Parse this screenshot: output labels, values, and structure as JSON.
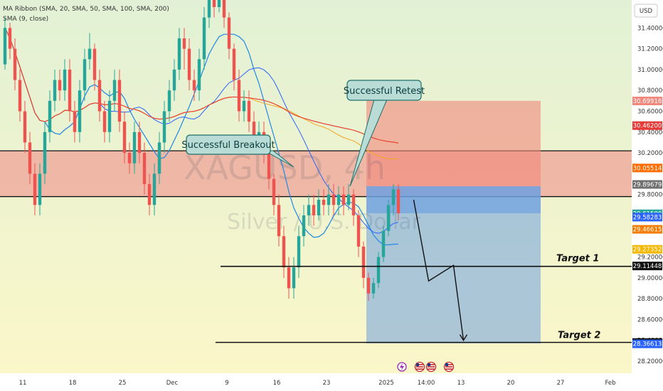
{
  "indicators": {
    "ribbon": "MA Ribbon (SMA, 20, SMA, 50, SMA, 100, SMA, 200)",
    "sma": "SMA (9, close)"
  },
  "currency": "USD",
  "watermark": {
    "symbol": "XAGUSD, 4h",
    "name": "Silver / U.S. Dollar"
  },
  "annotations": {
    "breakout": "Successful Breakout",
    "retest": "Successful Retest",
    "target1": "Target 1",
    "target2": "Target 2"
  },
  "colors": {
    "background_top": "#e4f2d2",
    "background_bottom": "#fbf6c9",
    "zone": "#f0908a",
    "stop_zone": "#f0877c",
    "profit_zone": "#6d9fe0",
    "up_candle": "#26a69a",
    "down_candle": "#ef5350",
    "ma20": "#2962ff",
    "ma50": "#f5a623",
    "ma100": "#ff6d00",
    "ma200": "#e53935",
    "sma9": "#1e88e5"
  },
  "chart_data": {
    "type": "candlestick",
    "symbol": "XAGUSD",
    "timeframe": "4h",
    "y_axis": {
      "min": 28.2,
      "max": 31.6,
      "ticks": [
        "31.40000",
        "31.20000",
        "31.00000",
        "30.80000",
        "30.60000",
        "30.40000",
        "30.20000",
        "29.80000",
        "29.20000",
        "29.00000",
        "28.80000",
        "28.60000",
        "28.40000",
        "28.20000"
      ],
      "price_labels": [
        {
          "label": "30.69916",
          "value": 30.699,
          "color": "#f0877c"
        },
        {
          "label": "30.46200",
          "value": 30.462,
          "color": "#e53935"
        },
        {
          "label": "30.05514",
          "value": 30.055,
          "color": "#ff6d00"
        },
        {
          "label": "29.89679",
          "value": 29.897,
          "color": "#707070"
        },
        {
          "label": "29.61500",
          "value": 29.615,
          "color": "#26a69a"
        },
        {
          "label": "29.58283",
          "value": 29.583,
          "color": "#2962ff"
        },
        {
          "label": "29.46615",
          "value": 29.466,
          "color": "#f57c00"
        },
        {
          "label": "29.27352",
          "value": 29.274,
          "color": "#f5b700"
        },
        {
          "label": "29.11448",
          "value": 29.114,
          "color": "#111111"
        },
        {
          "label": "28.37903",
          "value": 28.379,
          "color": "#111111"
        },
        {
          "label": "28.36613",
          "value": 28.366,
          "color": "#2962ff"
        }
      ]
    },
    "x_axis": {
      "ticks": [
        {
          "label": "11",
          "index": 4
        },
        {
          "label": "18",
          "index": 14
        },
        {
          "label": "25",
          "index": 24
        },
        {
          "label": "Dec",
          "index": 34
        },
        {
          "label": "9",
          "index": 45
        },
        {
          "label": "16",
          "index": 55
        },
        {
          "label": "23",
          "index": 65
        },
        {
          "label": "2025",
          "index": 77
        },
        {
          "label": "14:00",
          "index": 85
        },
        {
          "label": "13",
          "index": 92
        },
        {
          "label": "20",
          "index": 102
        },
        {
          "label": "27",
          "index": 112
        },
        {
          "label": "Feb",
          "index": 122
        }
      ]
    },
    "levels": {
      "zone_top": 30.22,
      "zone_bottom": 29.78,
      "target1": 29.11,
      "target2": 28.38
    },
    "position": {
      "start_index": 73,
      "end_index": 108,
      "entry": 29.62,
      "entry_high": 29.88,
      "stop": 30.7,
      "target": 28.37
    },
    "projection": [
      {
        "index": 82.5,
        "value": 29.75
      },
      {
        "index": 85.5,
        "value": 28.97
      },
      {
        "index": 90.5,
        "value": 29.12
      },
      {
        "index": 92.5,
        "value": 28.4
      }
    ],
    "candles": [
      [
        31.05,
        31.4,
        31.5,
        31.0
      ],
      [
        31.4,
        31.2,
        31.45,
        31.1
      ],
      [
        31.2,
        30.9,
        31.3,
        30.8
      ],
      [
        30.9,
        30.6,
        31.0,
        30.5
      ],
      [
        30.6,
        30.3,
        30.7,
        30.2
      ],
      [
        30.3,
        30.0,
        30.4,
        29.9
      ],
      [
        30.0,
        29.7,
        30.1,
        29.6
      ],
      [
        29.7,
        30.0,
        30.1,
        29.6
      ],
      [
        30.0,
        30.4,
        30.5,
        29.9
      ],
      [
        30.4,
        30.7,
        30.8,
        30.3
      ],
      [
        30.7,
        30.9,
        31.0,
        30.6
      ],
      [
        30.9,
        30.8,
        31.0,
        30.7
      ],
      [
        30.8,
        31.0,
        31.1,
        30.7
      ],
      [
        31.0,
        30.6,
        31.1,
        30.5
      ],
      [
        30.6,
        30.4,
        30.7,
        30.3
      ],
      [
        30.4,
        30.8,
        30.9,
        30.3
      ],
      [
        30.8,
        31.1,
        31.2,
        30.7
      ],
      [
        31.1,
        31.2,
        31.35,
        31.0
      ],
      [
        31.2,
        30.9,
        31.25,
        30.8
      ],
      [
        30.9,
        30.6,
        31.0,
        30.5
      ],
      [
        30.6,
        30.4,
        30.7,
        30.3
      ],
      [
        30.4,
        30.7,
        30.8,
        30.3
      ],
      [
        30.7,
        30.9,
        31.0,
        30.6
      ],
      [
        30.9,
        30.5,
        31.0,
        30.4
      ],
      [
        30.5,
        30.2,
        30.6,
        30.1
      ],
      [
        30.2,
        30.1,
        30.3,
        30.0
      ],
      [
        30.1,
        30.4,
        30.5,
        30.0
      ],
      [
        30.4,
        30.2,
        30.5,
        30.1
      ],
      [
        30.2,
        29.9,
        30.3,
        29.8
      ],
      [
        29.9,
        29.7,
        30.0,
        29.6
      ],
      [
        29.7,
        30.0,
        30.1,
        29.6
      ],
      [
        30.0,
        30.3,
        30.4,
        29.9
      ],
      [
        30.3,
        30.6,
        30.7,
        30.2
      ],
      [
        30.6,
        30.8,
        30.9,
        30.5
      ],
      [
        30.8,
        31.0,
        31.1,
        30.7
      ],
      [
        31.0,
        31.3,
        31.4,
        30.9
      ],
      [
        31.3,
        31.2,
        31.4,
        31.0
      ],
      [
        31.2,
        30.9,
        31.3,
        30.8
      ],
      [
        30.9,
        30.8,
        31.0,
        30.7
      ],
      [
        30.8,
        31.1,
        31.2,
        30.7
      ],
      [
        31.1,
        31.5,
        31.6,
        31.0
      ],
      [
        31.5,
        31.75,
        31.8,
        31.4
      ],
      [
        31.75,
        31.6,
        31.8,
        31.5
      ],
      [
        31.6,
        31.7,
        31.8,
        31.55
      ],
      [
        31.7,
        31.5,
        31.75,
        31.4
      ],
      [
        31.5,
        31.2,
        31.55,
        31.1
      ],
      [
        31.2,
        30.9,
        31.25,
        30.8
      ],
      [
        30.9,
        30.6,
        31.0,
        30.5
      ],
      [
        30.6,
        30.7,
        30.8,
        30.5
      ],
      [
        30.7,
        30.5,
        30.8,
        30.4
      ],
      [
        30.5,
        30.3,
        30.6,
        30.2
      ],
      [
        30.3,
        30.4,
        30.5,
        30.2
      ],
      [
        30.4,
        30.2,
        30.5,
        30.1
      ],
      [
        30.2,
        29.95,
        30.3,
        29.85
      ],
      [
        29.95,
        29.7,
        30.0,
        29.6
      ],
      [
        29.7,
        29.4,
        29.8,
        29.3
      ],
      [
        29.4,
        29.1,
        29.5,
        29.0
      ],
      [
        29.1,
        28.9,
        29.2,
        28.8
      ],
      [
        28.9,
        29.1,
        29.2,
        28.8
      ],
      [
        29.1,
        29.4,
        29.5,
        29.0
      ],
      [
        29.4,
        29.6,
        29.7,
        29.3
      ],
      [
        29.6,
        29.7,
        29.8,
        29.5
      ],
      [
        29.7,
        29.6,
        29.8,
        29.5
      ],
      [
        29.6,
        29.75,
        29.85,
        29.55
      ],
      [
        29.75,
        29.7,
        29.85,
        29.6
      ],
      [
        29.7,
        29.8,
        29.9,
        29.6
      ],
      [
        29.8,
        29.7,
        29.9,
        29.6
      ],
      [
        29.7,
        29.8,
        29.88,
        29.6
      ],
      [
        29.8,
        29.7,
        29.88,
        29.6
      ],
      [
        29.7,
        29.8,
        29.9,
        29.65
      ],
      [
        29.8,
        29.6,
        29.85,
        29.5
      ],
      [
        29.6,
        29.3,
        29.65,
        29.2
      ],
      [
        29.3,
        29.0,
        29.35,
        28.9
      ],
      [
        29.0,
        28.85,
        29.05,
        28.78
      ],
      [
        28.85,
        28.95,
        29.0,
        28.8
      ],
      [
        28.95,
        29.2,
        29.25,
        28.9
      ],
      [
        29.2,
        29.45,
        29.5,
        29.15
      ],
      [
        29.45,
        29.7,
        29.75,
        29.4
      ],
      [
        29.7,
        29.85,
        29.9,
        29.6
      ],
      [
        29.85,
        29.62,
        29.9,
        29.55
      ]
    ]
  }
}
